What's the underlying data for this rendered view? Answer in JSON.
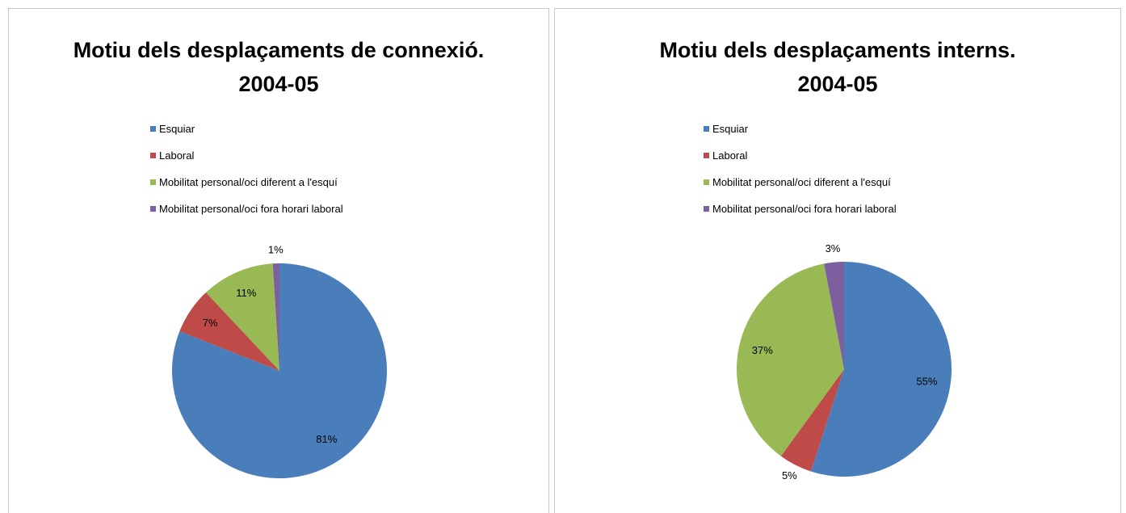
{
  "chart_data": [
    {
      "type": "pie",
      "title": "Motiu dels desplaçaments de connexió. 2004-05",
      "categories": [
        "Esquiar",
        "Laboral",
        "Mobilitat personal/oci diferent a l'esquí",
        "Mobilitat personal/oci fora horari laboral"
      ],
      "values": [
        81,
        7,
        11,
        1
      ],
      "value_labels": [
        "81%",
        "7%",
        "11%",
        "1%"
      ],
      "colors": [
        "#4a7ebb",
        "#be4b48",
        "#98b954",
        "#7d5fa0"
      ],
      "legend": "top"
    },
    {
      "type": "pie",
      "title": "Motiu dels desplaçaments interns. 2004-05",
      "categories": [
        "Esquiar",
        "Laboral",
        "Mobilitat personal/oci diferent a l'esquí",
        "Mobilitat personal/oci fora horari laboral"
      ],
      "values": [
        55,
        5,
        37,
        3
      ],
      "value_labels": [
        "55%",
        "5%",
        "37%",
        "3%"
      ],
      "colors": [
        "#4a7ebb",
        "#be4b48",
        "#98b954",
        "#7d5fa0"
      ],
      "legend": "top"
    }
  ]
}
